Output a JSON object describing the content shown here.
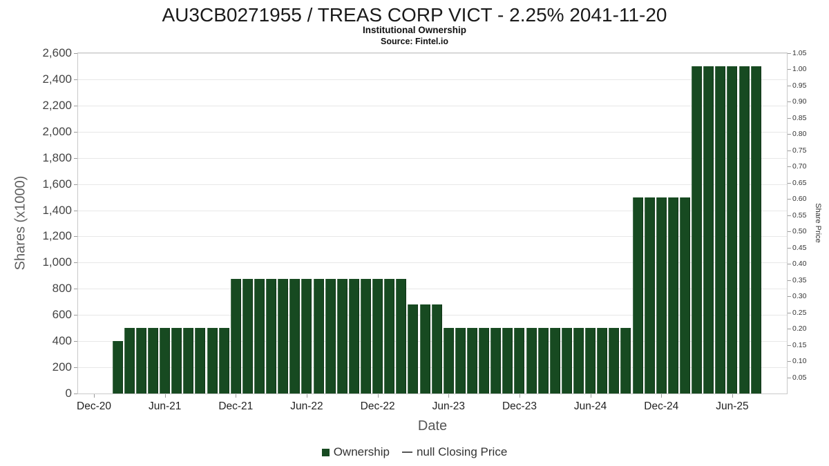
{
  "header": {
    "title": "AU3CB0271955 / TREAS CORP VICT - 2.25% 2041-11-20",
    "subtitle": "Institutional Ownership",
    "source": "Source: Fintel.io"
  },
  "chart_data": {
    "type": "bar",
    "title": "AU3CB0271955 / TREAS CORP VICT - 2.25% 2041-11-20",
    "subtitle": "Institutional Ownership",
    "source": "Source: Fintel.io",
    "xlabel": "Date",
    "ylabel_left": "Shares (x1000)",
    "ylabel_right": "Share Price",
    "grid": true,
    "legend_position": "bottom",
    "x_tick_labels": [
      "Dec-20",
      "Jun-21",
      "Dec-21",
      "Jun-22",
      "Dec-22",
      "Jun-23",
      "Dec-23",
      "Jun-24",
      "Dec-24",
      "Jun-25"
    ],
    "y_left_axis": {
      "min": 0,
      "max": 2600,
      "step": 200
    },
    "y_right_axis": {
      "min": 0,
      "max": 1.05,
      "step": 0.05,
      "first_label": 0.05,
      "last_label": 1.05
    },
    "series": [
      {
        "name": "Ownership",
        "type": "bar",
        "color": "#174a21",
        "x": [
          "Feb-21",
          "Mar-21",
          "Apr-21",
          "May-21",
          "Jun-21",
          "Jul-21",
          "Aug-21",
          "Sep-21",
          "Oct-21",
          "Nov-21",
          "Dec-21",
          "Jan-22",
          "Feb-22",
          "Mar-22",
          "Apr-22",
          "May-22",
          "Jun-22",
          "Jul-22",
          "Aug-22",
          "Sep-22",
          "Oct-22",
          "Nov-22",
          "Dec-22",
          "Jan-23",
          "Feb-23",
          "Mar-23",
          "Apr-23",
          "May-23",
          "Jun-23",
          "Jul-23",
          "Aug-23",
          "Sep-23",
          "Oct-23",
          "Nov-23",
          "Dec-23",
          "Jan-24",
          "Feb-24",
          "Mar-24",
          "Apr-24",
          "May-24",
          "Jun-24",
          "Jul-24",
          "Aug-24",
          "Sep-24",
          "Oct-24",
          "Nov-24",
          "Dec-24",
          "Jan-25",
          "Feb-25",
          "Mar-25",
          "Apr-25",
          "May-25",
          "Jun-25",
          "Jul-25",
          "Aug-25"
        ],
        "values": [
          400,
          500,
          500,
          500,
          500,
          500,
          500,
          500,
          500,
          500,
          875,
          875,
          875,
          875,
          875,
          875,
          875,
          875,
          875,
          875,
          875,
          875,
          875,
          875,
          875,
          680,
          680,
          680,
          500,
          500,
          500,
          500,
          500,
          500,
          500,
          500,
          500,
          500,
          500,
          500,
          500,
          500,
          500,
          500,
          1500,
          1500,
          1500,
          1500,
          1500,
          2500,
          2500,
          2500,
          2500,
          2500,
          2500
        ]
      },
      {
        "name": "null Closing Price",
        "type": "line",
        "color": "#555555",
        "x": [],
        "values": []
      }
    ]
  },
  "legend": {
    "ownership_label": "Ownership",
    "price_label": "null Closing Price"
  },
  "colors": {
    "bar": "#174a21",
    "grid": "#e7e7e7",
    "plot_border": "#c9c9c9",
    "axis_title": "#606060",
    "tick_label": "#444444"
  }
}
